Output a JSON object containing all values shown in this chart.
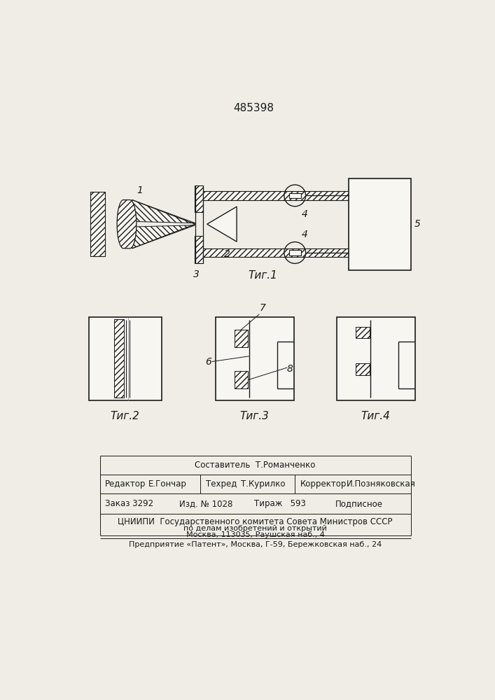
{
  "patent_number": "485398",
  "fig1_caption": "Τиг.1",
  "fig2_caption": "Τиг.2",
  "fig3_caption": "Τиг.3",
  "fig4_caption": "Τиг.4",
  "footer_line1": "Составитель  Т.Романченко",
  "footer_line2_left": "Редактор",
  "footer_line2_left_name": "Е.Гончар",
  "footer_line2_mid": "Техред",
  "footer_line2_mid_name": "Т.Курилко",
  "footer_line2_right": "Корректор",
  "footer_line2_right_name": "И.Позняковская",
  "footer_line3_zak": "Заказ 3292",
  "footer_line3_izd": "Изд. № 1028",
  "footer_line3_tir": "Тираж   593",
  "footer_line3_pod": "Подписное",
  "footer_line4": "ЦНИИПИ  Государственного комитета Совета Министров СССР",
  "footer_line5": "по делам изобретений и открытий",
  "footer_line6": "Москва, 113035, Раушская наб., 4",
  "footer_line7": "Предприятие «Патент», Москва, Г-59, Бережковская наб., 24",
  "bg_color": "#f0ede6",
  "line_color": "#1a1a1a"
}
